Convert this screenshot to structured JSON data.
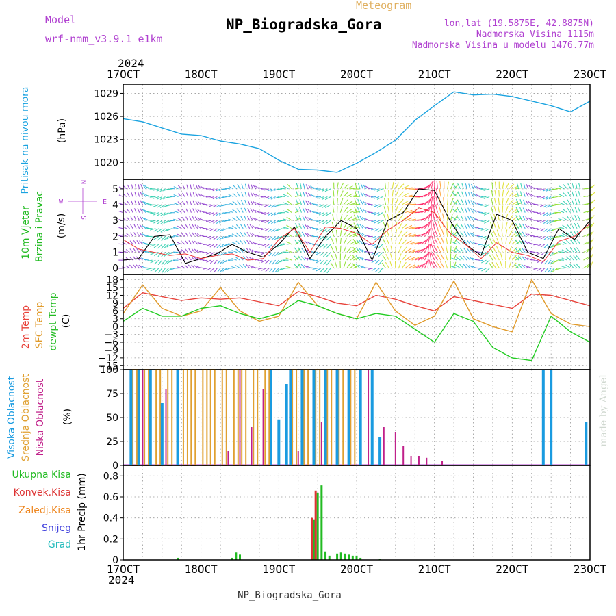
{
  "header": {
    "model_label": "Model",
    "model_name": "wrf-nmm_v3.9.1  e1km",
    "chart_kind": "Meteogram",
    "station": "NP_Biogradska_Gora",
    "lonlat": "lon,lat (19.5875E, 42.8875N)",
    "elevation": "Nadmorska Visina 1115m",
    "model_elevation": "Nadmorska Visina u modelu 1476.77m",
    "footer_station": "NP_Biogradska_Gora",
    "credit": "made by Angel"
  },
  "colors": {
    "pressure": "#1aa3e0",
    "temp2m": "#e8423a",
    "sfc": "#e09a2a",
    "dew": "#22cc22",
    "high_cloud": "#1a9be0",
    "mid_cloud": "#e0a030",
    "low_cloud": "#c0208a",
    "precip_total": "#22bb22",
    "precip_conv": "#dd3333",
    "precip_frozen": "#ee8822",
    "snow": "#4444dd",
    "hail": "#22bbbb",
    "purple_text": "#b040d0",
    "gold_text": "#e0b060",
    "black_line": "#000000"
  },
  "chart_data": [
    {
      "type": "line",
      "id": "pressure",
      "ylabel_main": "Pritisak na nivou mora",
      "ylabel_unit": "(hPa)",
      "x_ticks": [
        "17OCT",
        "18OCT",
        "19OCT",
        "20OCT",
        "21OCT",
        "22OCT",
        "23OCT"
      ],
      "x_year": "2024",
      "ylim": [
        1017.8,
        1030.2
      ],
      "yticks": [
        1020,
        1023,
        1026,
        1029
      ],
      "x_day": [
        0,
        0.25,
        0.5,
        0.75,
        1,
        1.25,
        1.5,
        1.75,
        2,
        2.25,
        2.5,
        2.75,
        3,
        3.25,
        3.5,
        3.75,
        4,
        4.25,
        4.5,
        4.75,
        5,
        5.25,
        5.5,
        5.75,
        6
      ],
      "values": [
        1025.7,
        1025.3,
        1024.5,
        1023.7,
        1023.5,
        1022.8,
        1022.4,
        1021.8,
        1020.3,
        1019.1,
        1019.0,
        1018.7,
        1019.9,
        1021.3,
        1022.9,
        1025.5,
        1027.4,
        1029.2,
        1028.8,
        1028.9,
        1028.6,
        1028.0,
        1027.4,
        1026.6,
        1028.0
      ]
    },
    {
      "type": "line",
      "id": "wind",
      "ylabel_main": "10m Vjetar",
      "ylabel_sub": "Brzina i Pravac",
      "ylabel_unit": "(m/s)",
      "compass_n": "N",
      "compass_s": "S",
      "compass_e": "E",
      "compass_w": "W",
      "ylim": [
        -0.4,
        5.6
      ],
      "yticks": [
        0,
        1,
        2,
        3,
        4,
        5
      ],
      "series": [
        {
          "line": "speed",
          "x_day": [
            0,
            0.2,
            0.4,
            0.6,
            0.8,
            1.0,
            1.2,
            1.4,
            1.6,
            1.8,
            2.0,
            2.2,
            2.4,
            2.6,
            2.8,
            3.0,
            3.2,
            3.4,
            3.6,
            3.8,
            4.0,
            4.2,
            4.4,
            4.6,
            4.8,
            5.0,
            5.2,
            5.4,
            5.6,
            5.8,
            6.0
          ],
          "values": [
            0.5,
            0.6,
            2.0,
            2.1,
            0.3,
            0.6,
            0.9,
            1.5,
            1.0,
            0.7,
            1.5,
            2.6,
            0.6,
            2.0,
            3.0,
            2.5,
            0.5,
            3.0,
            3.5,
            5.0,
            4.9,
            3.0,
            1.5,
            0.8,
            3.4,
            3.0,
            1.0,
            0.6,
            2.5,
            1.8,
            3.0
          ]
        },
        {
          "line": "gust",
          "x_day": [
            0,
            0.2,
            0.4,
            0.6,
            0.8,
            1.0,
            1.2,
            1.4,
            1.6,
            1.8,
            2.0,
            2.2,
            2.4,
            2.6,
            2.8,
            3.0,
            3.2,
            3.4,
            3.6,
            3.8,
            4.0,
            4.2,
            4.4,
            4.6,
            4.8,
            5.0,
            5.2,
            5.4,
            5.6,
            5.8,
            6.0
          ],
          "values": [
            1.8,
            1.2,
            1.0,
            0.8,
            0.9,
            0.6,
            0.8,
            0.9,
            0.5,
            0.6,
            1.8,
            2.5,
            1.0,
            2.6,
            2.5,
            2.2,
            1.5,
            2.4,
            3.0,
            3.8,
            3.5,
            2.2,
            1.5,
            0.6,
            1.6,
            1.0,
            0.8,
            0.4,
            1.7,
            2.0,
            2.8
          ]
        }
      ]
    },
    {
      "type": "line",
      "id": "temperature",
      "ylabel_main": "2m Temp",
      "ylabel_sub": "SFC Temp",
      "ylabel_sub2": "dewpt Temp",
      "ylabel_unit": "(C)",
      "ylim": [
        -16.5,
        20
      ],
      "yticks": [
        18,
        15,
        12,
        9,
        6,
        3,
        0,
        -3,
        -6,
        -9,
        -12,
        -15
      ],
      "x_day": [
        0,
        0.25,
        0.5,
        0.75,
        1,
        1.25,
        1.5,
        1.75,
        2,
        2.25,
        2.5,
        2.75,
        3,
        3.25,
        3.5,
        3.75,
        4,
        4.25,
        4.5,
        4.75,
        5,
        5.25,
        5.5,
        5.75,
        6
      ],
      "series": [
        {
          "name": "2m Temp",
          "values": [
            7.0,
            13.0,
            11.5,
            10.0,
            11.0,
            10.5,
            11.0,
            9.5,
            8.0,
            13.5,
            11.5,
            9.0,
            8.0,
            12.0,
            10.5,
            8.0,
            6.0,
            11.5,
            10.0,
            8.5,
            7.0,
            12.5,
            12.0,
            10.0,
            8.0
          ]
        },
        {
          "name": "SFC Temp",
          "values": [
            5.0,
            16.0,
            7.0,
            4.0,
            6.0,
            15.0,
            6.0,
            2.0,
            4.0,
            17.0,
            8.0,
            5.0,
            3.0,
            17.0,
            6.0,
            0.5,
            4.0,
            17.5,
            3.0,
            0.0,
            -2.0,
            18.0,
            5.0,
            1.0,
            0.0
          ]
        },
        {
          "name": "dewpt Temp",
          "values": [
            2.0,
            7.0,
            4.0,
            4.0,
            7.0,
            8.0,
            5.0,
            3.0,
            5.0,
            10.0,
            8.0,
            5.0,
            3.0,
            5.0,
            4.0,
            -1.0,
            -6.0,
            5.0,
            2.0,
            -8.0,
            -12.0,
            -13.0,
            4.0,
            -2.0,
            -6.0
          ]
        }
      ]
    },
    {
      "type": "bar",
      "id": "clouds",
      "ylabel_main": "Visoka Oblacnost",
      "ylabel_sub": "Srednja Oblacnost",
      "ylabel_sub2": "Niska Oblacnost",
      "ylabel_unit": "(%)",
      "ylim": [
        0,
        100
      ],
      "yticks": [
        0,
        25,
        50,
        75,
        100
      ],
      "series": [
        {
          "name": "Visoka Oblacnost",
          "x_day": [
            0.1,
            0.2,
            0.35,
            0.5,
            0.7,
            1.9,
            2.0,
            2.1,
            2.15,
            2.3,
            2.45,
            2.6,
            2.75,
            2.9,
            3.05,
            3.2,
            3.3,
            5.4,
            5.5,
            5.95
          ],
          "values": [
            100,
            100,
            100,
            65,
            100,
            100,
            48,
            85,
            100,
            100,
            100,
            100,
            100,
            100,
            100,
            100,
            30,
            100,
            100,
            45
          ]
        },
        {
          "name": "Srednja Oblacnost",
          "x_day": [
            0.15,
            0.3,
            0.45,
            0.6,
            0.8,
            0.9,
            1.05,
            1.15,
            1.3,
            1.45,
            1.55,
            1.7,
            1.85,
            2.2,
            2.35,
            2.5,
            2.65,
            2.8,
            2.95
          ],
          "values": [
            100,
            100,
            100,
            100,
            100,
            100,
            100,
            100,
            100,
            100,
            100,
            100,
            100,
            100,
            100,
            100,
            100,
            100,
            100
          ]
        },
        {
          "name": "Niska Oblacnost",
          "x_day": [
            0.25,
            0.55,
            1.35,
            1.5,
            1.65,
            1.8,
            2.25,
            2.55,
            3.15,
            3.35,
            3.5,
            3.6,
            3.7,
            3.8,
            3.9,
            4.1
          ],
          "values": [
            100,
            80,
            15,
            100,
            40,
            80,
            15,
            45,
            100,
            40,
            35,
            20,
            10,
            10,
            8,
            5
          ]
        }
      ]
    },
    {
      "type": "bar",
      "id": "precip",
      "ylabel_main": "1hr Precip (mm)",
      "legend": [
        "Ukupna Kisa",
        "Konvek.Kisa",
        "Zaledj.Kisa",
        "Snijeg",
        "Grad"
      ],
      "ylim": [
        0,
        0.9
      ],
      "yticks": [
        0,
        0.2,
        0.4,
        0.6,
        0.8
      ],
      "series": [
        {
          "name": "Ukupna Kisa",
          "x_day": [
            0.7,
            1.4,
            1.45,
            1.5,
            2.45,
            2.5,
            2.55,
            2.6,
            2.65,
            2.75,
            2.8,
            2.85,
            2.9,
            2.95,
            3.0,
            3.05,
            3.3
          ],
          "values": [
            0.02,
            0.02,
            0.07,
            0.05,
            0.38,
            0.64,
            0.71,
            0.08,
            0.04,
            0.06,
            0.07,
            0.06,
            0.05,
            0.04,
            0.04,
            0.02,
            0.01
          ]
        },
        {
          "name": "Konvek.Kisa",
          "x_day": [
            2.45,
            2.5
          ],
          "values": [
            0.4,
            0.66
          ]
        }
      ]
    }
  ]
}
